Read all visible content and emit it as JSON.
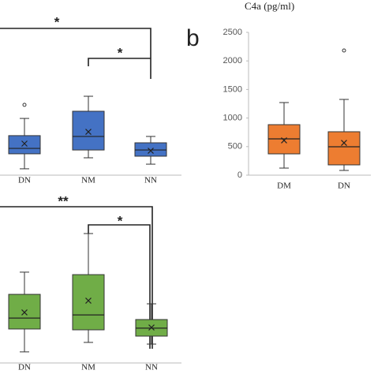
{
  "chart_data": [
    {
      "type": "box",
      "categories": [
        "DN",
        "NM",
        "NN"
      ],
      "color": "#4472c4",
      "ylim": [
        0,
        100
      ],
      "annotations": [
        "*",
        "*"
      ],
      "boxes": [
        {
          "min": 4.0,
          "q1": 13.4,
          "median": 16.8,
          "q3": 24.8,
          "max": 35.6,
          "mean": 19.8,
          "outliers": [
            44.1
          ]
        },
        {
          "min": 10.9,
          "q1": 15.8,
          "median": 24.3,
          "q3": 40.1,
          "max": 49.5,
          "mean": 27.2,
          "outliers": []
        },
        {
          "min": 6.9,
          "q1": 11.9,
          "median": 15.8,
          "q3": 20.3,
          "max": 24.3,
          "mean": 15.3,
          "outliers": []
        }
      ]
    },
    {
      "type": "box",
      "categories": [
        "DN",
        "NM",
        "NN"
      ],
      "color": "#70ad47",
      "ylim": [
        0,
        100
      ],
      "annotations": [
        "**",
        "*"
      ],
      "boxes": [
        {
          "min": 6.7,
          "q1": 20.5,
          "median": 27.1,
          "q3": 41.4,
          "max": 54.8,
          "mean": 30.5,
          "outliers": []
        },
        {
          "min": 12.4,
          "q1": 20.0,
          "median": 29.0,
          "q3": 53.3,
          "max": 78.1,
          "mean": 37.6,
          "outliers": []
        },
        {
          "min": 11.4,
          "q1": 16.2,
          "median": 21.0,
          "q3": 26.2,
          "max": 35.7,
          "mean": 21.4,
          "outliers": []
        }
      ]
    },
    {
      "type": "box",
      "panel_label": "b",
      "y_label": "C4a (pg/ml)",
      "categories": [
        "DM",
        "DN"
      ],
      "color": "#ed7d31",
      "ylim": [
        0,
        2500
      ],
      "yticks": [
        0,
        500,
        1000,
        1500,
        2000,
        2500
      ],
      "boxes": [
        {
          "min": 124,
          "q1": 373,
          "median": 635,
          "q3": 884,
          "max": 1271,
          "mean": 608,
          "outliers": []
        },
        {
          "min": 83,
          "q1": 180,
          "median": 497,
          "q3": 760,
          "max": 1326,
          "mean": 566,
          "outliers": [
            2182
          ]
        }
      ]
    }
  ]
}
